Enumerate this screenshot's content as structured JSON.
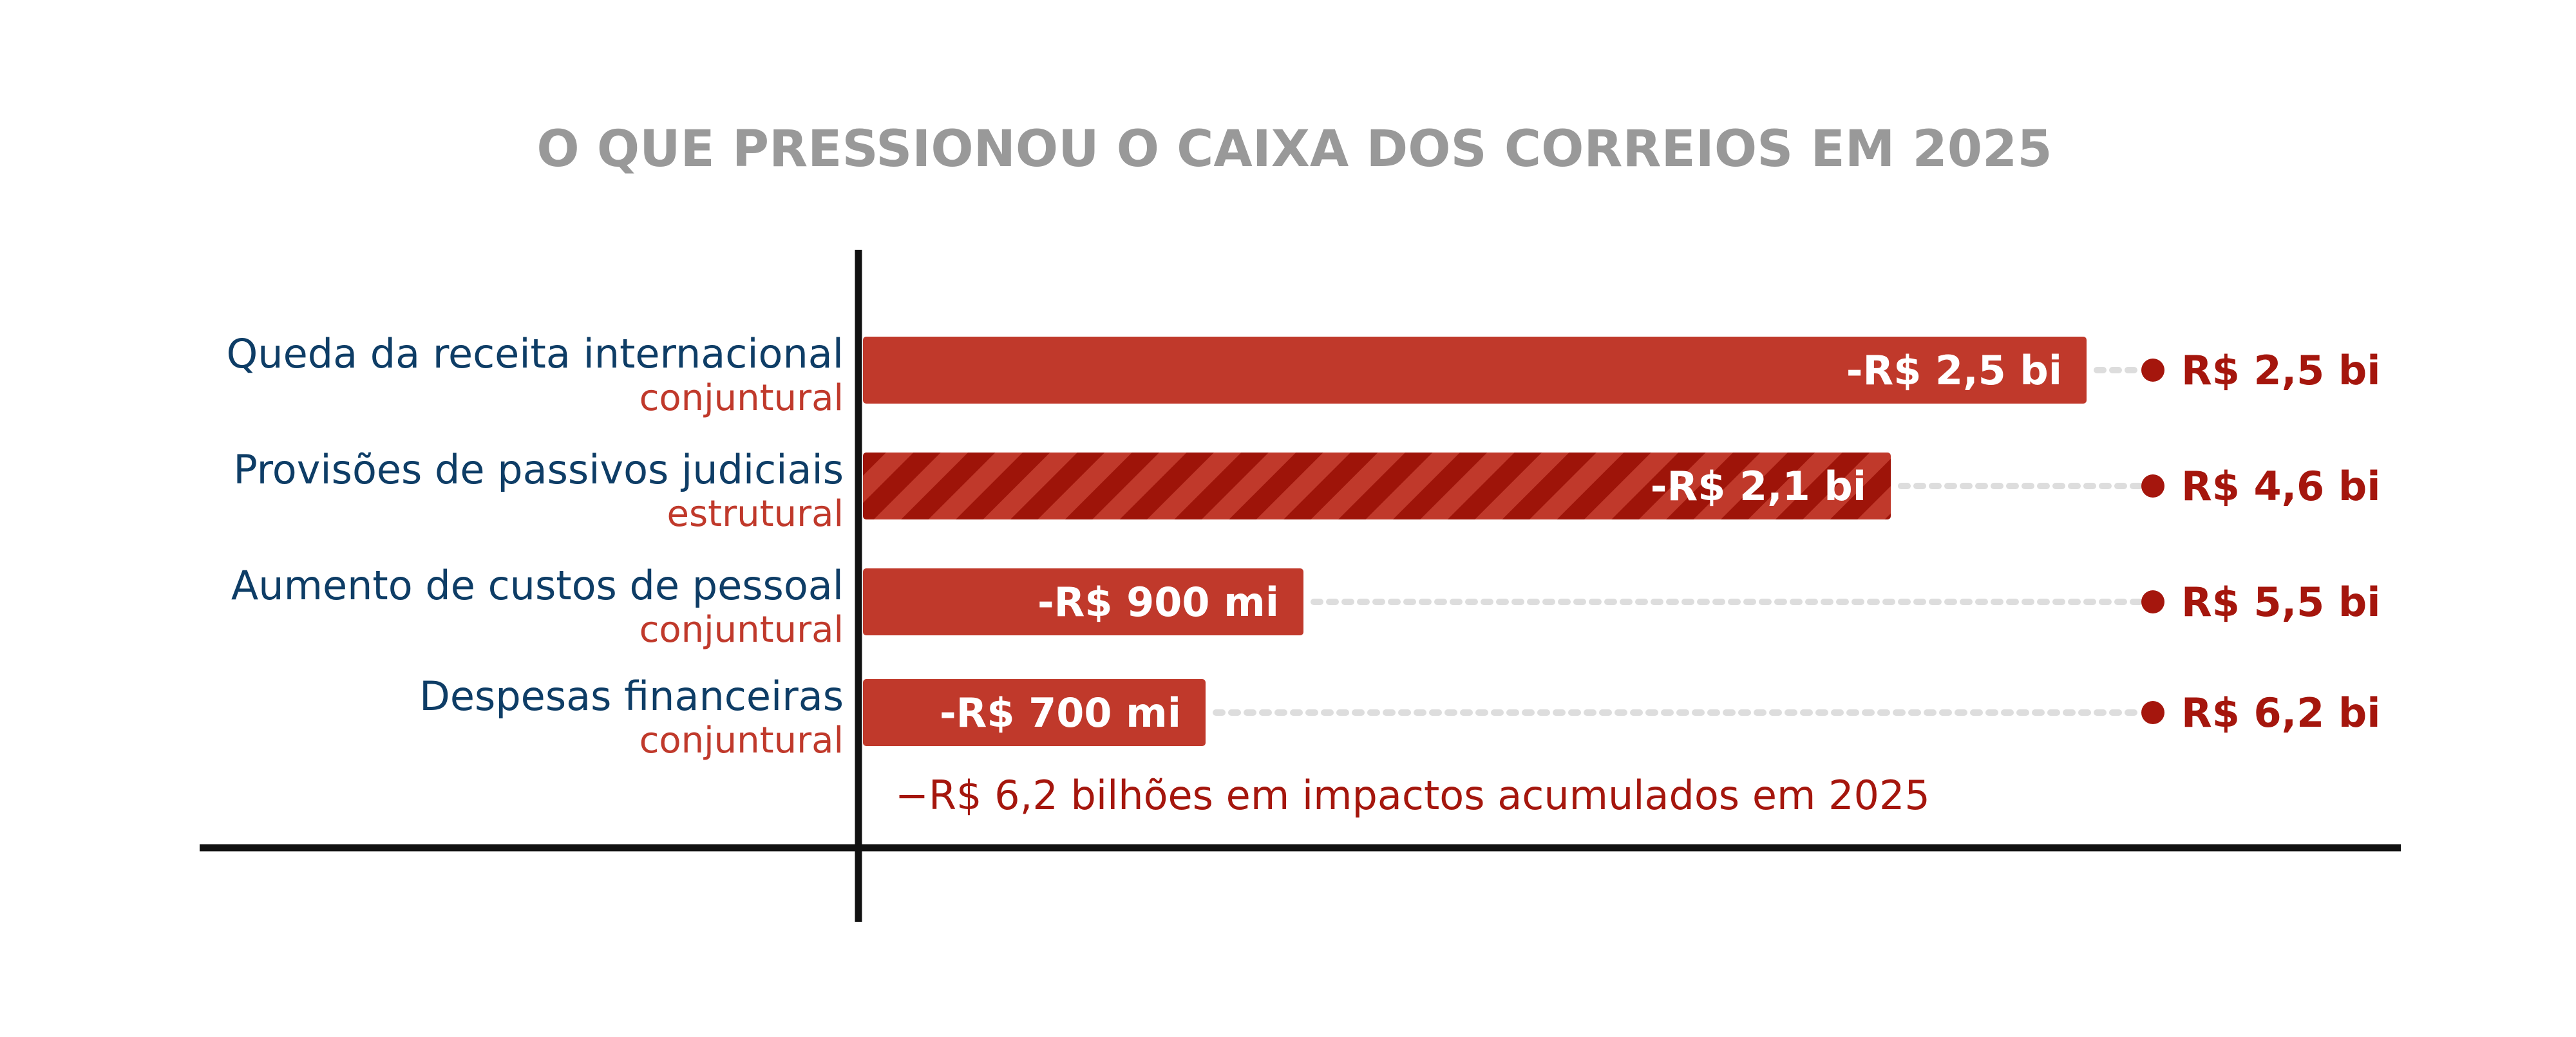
{
  "chart_data": {
    "type": "bar",
    "orientation": "horizontal",
    "title": "O QUE PRESSIONOU O CAIXA DOS CORREIOS EM 2025",
    "categories": [
      "Queda da receita internacional",
      "Provisões de passivos judiciais",
      "Aumento de custos de pessoal",
      "Despesas financeiras"
    ],
    "types": [
      "conjuntural",
      "estrutural",
      "conjuntural",
      "conjuntural"
    ],
    "values": [
      2.5,
      2.1,
      0.9,
      0.7
    ],
    "value_unit": "R$ bilhões",
    "bar_labels": [
      "-R$ 2,5 bi",
      "-R$ 2,1 bi",
      "-R$ 900 mi",
      "-R$ 700 mi"
    ],
    "cumulative": [
      2.5,
      4.6,
      5.5,
      6.2
    ],
    "cumulative_labels": [
      "R$ 2,5 bi",
      "R$ 4,6 bi",
      "R$ 5,5 bi",
      "R$ 6,2 bi"
    ],
    "footnote": "−R$ 6,2 bilhões em impactos acumulados em 2025",
    "xlim": [
      0,
      3.0
    ],
    "grid": false,
    "pattern": [
      "solid",
      "hatched",
      "solid",
      "solid"
    ],
    "colors": {
      "bar": "#c0392b",
      "hatch": "#9e1409",
      "label_dark": "#a5160d",
      "category_text": "#0e3d66",
      "type_text": "#c0392b",
      "title": "#999999",
      "leader": "#dddddd",
      "axis": "#111111"
    }
  }
}
